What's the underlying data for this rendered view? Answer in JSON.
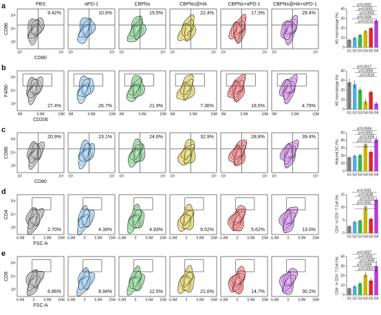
{
  "figure": {
    "groups": [
      "PBS",
      "αPD-1",
      "CBPNs",
      "CBPNs@HA",
      "CBPNs+αPD-1",
      "CBPNs@HA+αPD-1"
    ],
    "rows": [
      {
        "label": "a",
        "y_label": "CD86",
        "x_label": "CD80",
        "xticks": [
          "10¹",
          "10⁵"
        ],
        "yticks": [
          "10⁶",
          "10⁴",
          "10²"
        ],
        "gate": "quadrant",
        "corner": "top",
        "percents": [
          "9.42%",
          "10.6%",
          "15.5%",
          "22.4%",
          "17.3%",
          "29.4%"
        ]
      },
      {
        "label": "b",
        "y_label": "F4/80",
        "x_label": "CD206",
        "xticks": [
          "0M",
          "5.0M",
          "10M"
        ],
        "yticks": [
          "10⁶",
          "10⁴",
          "10²"
        ],
        "gate": "box",
        "corner": "bottom",
        "percents": [
          "27.4%",
          "26.7%",
          "21.9%",
          "7.36%",
          "18.5%",
          "4.79%"
        ]
      },
      {
        "label": "c",
        "y_label": "CD86",
        "x_label": "CD80",
        "xticks": [
          "10¹",
          "10⁵"
        ],
        "yticks": [
          "10⁶",
          "10⁴",
          "10²"
        ],
        "gate": "quadrant",
        "corner": "top",
        "percents": [
          "20.9%",
          "23.1%",
          "24.6%",
          "32.9%",
          "28.8%",
          "39.4%"
        ]
      },
      {
        "label": "d",
        "y_label": "CD4",
        "x_label": "FSC-A",
        "xticks": [
          "-5.0M",
          "0",
          "5.0M",
          "15M"
        ],
        "yticks": [
          "10⁶",
          "10⁴",
          "10²"
        ],
        "gate": "box",
        "corner": "bottom",
        "percents": [
          "2.70%",
          "4.39%",
          "4.93%",
          "9.52%",
          "5.62%",
          "13.0%"
        ]
      },
      {
        "label": "e",
        "y_label": "CD8",
        "x_label": "FSC-A",
        "xticks": [
          "-5.0M",
          "0",
          "5.0M",
          "15M"
        ],
        "yticks": [
          "10⁶",
          "10⁴",
          "10²"
        ],
        "gate": "box",
        "corner": "bottom",
        "percents": [
          "6.86%",
          "8.94%",
          "12.5%",
          "21.6%",
          "14.7%",
          "30.2%"
        ]
      }
    ]
  },
  "chart_data": [
    {
      "type": "bar",
      "y_label": "M1 macrophage (%)",
      "categories": [
        "G1",
        "G2",
        "G3",
        "G4",
        "G5",
        "G6"
      ],
      "values": [
        8,
        10,
        13,
        17,
        20,
        28
      ],
      "errors": [
        1,
        1.5,
        1.5,
        1.5,
        2,
        2
      ],
      "colors": [
        "#7f7f7f",
        "#5aa9e6",
        "#3cb54a",
        "#c9b400",
        "#e0282a",
        "#b23fd6"
      ],
      "ylim": [
        0,
        40
      ],
      "yticks": [
        0,
        10,
        20,
        30,
        40
      ],
      "annotations": [
        "p=0.0001",
        "p<0.0001",
        "p=0.0003",
        "p=0.0436",
        "p=0.0213"
      ]
    },
    {
      "type": "bar",
      "y_label": "M2 macrophage (%)",
      "categories": [
        "G1",
        "G2",
        "G3",
        "G4",
        "G5",
        "G6"
      ],
      "values": [
        28,
        26,
        20,
        8,
        18,
        6
      ],
      "errors": [
        4,
        4,
        3,
        3,
        2,
        2
      ],
      "colors": [
        "#7f7f7f",
        "#5aa9e6",
        "#3cb54a",
        "#c9b400",
        "#e0282a",
        "#b23fd6"
      ],
      "ylim": [
        0,
        40
      ],
      "yticks": [
        0,
        10,
        20,
        30,
        40
      ],
      "annotations": [
        "p=0.0017",
        "p=0.0059",
        "p=0.0016"
      ]
    },
    {
      "type": "bar",
      "y_label": "Matured DC (%)",
      "categories": [
        "G1",
        "G2",
        "G3",
        "G4",
        "G5",
        "G6"
      ],
      "values": [
        18,
        20,
        21,
        33,
        25,
        41
      ],
      "errors": [
        1.5,
        2,
        2,
        3,
        3,
        4
      ],
      "colors": [
        "#7f7f7f",
        "#5aa9e6",
        "#3cb54a",
        "#c9b400",
        "#e0282a",
        "#b23fd6"
      ],
      "ylim": [
        0,
        50
      ],
      "yticks": [
        0,
        10,
        20,
        30,
        40,
        50
      ],
      "annotations": [
        "p=0.0004",
        "p<0.0001",
        "p=0.0009",
        "p=0.0013",
        "ns"
      ]
    },
    {
      "type": "bar",
      "y_label": "CD4⁺ in CD3⁺ T Cell (%)",
      "categories": [
        "G1",
        "G2",
        "G3",
        "G4",
        "G5",
        "G6"
      ],
      "values": [
        2.7,
        4.4,
        4.9,
        9.5,
        5.6,
        13
      ],
      "errors": [
        0.5,
        0.5,
        0.5,
        0.8,
        0.6,
        1
      ],
      "colors": [
        "#7f7f7f",
        "#5aa9e6",
        "#3cb54a",
        "#c9b400",
        "#e0282a",
        "#b23fd6"
      ],
      "ylim": [
        0,
        15
      ],
      "yticks": [
        0,
        5,
        10,
        15
      ],
      "annotations": [
        "p<0.0001",
        "p=0.0038",
        "p=0.0015",
        "p<0.0001",
        "ns"
      ]
    },
    {
      "type": "bar",
      "y_label": "CD8⁺ in CD3⁺ T Cell (%)",
      "categories": [
        "G1",
        "G2",
        "G3",
        "G4",
        "G5",
        "G6"
      ],
      "values": [
        7,
        9,
        12,
        21,
        15,
        30
      ],
      "errors": [
        1,
        1.5,
        2,
        3,
        3,
        6
      ],
      "colors": [
        "#7f7f7f",
        "#5aa9e6",
        "#3cb54a",
        "#c9b400",
        "#e0282a",
        "#b23fd6"
      ],
      "ylim": [
        0,
        40
      ],
      "yticks": [
        0,
        10,
        20,
        30,
        40
      ],
      "annotations": [
        "p=0.0027",
        "p<0.0001",
        "p=0.0006",
        "p=0.0009",
        "p=0.0053"
      ]
    }
  ]
}
